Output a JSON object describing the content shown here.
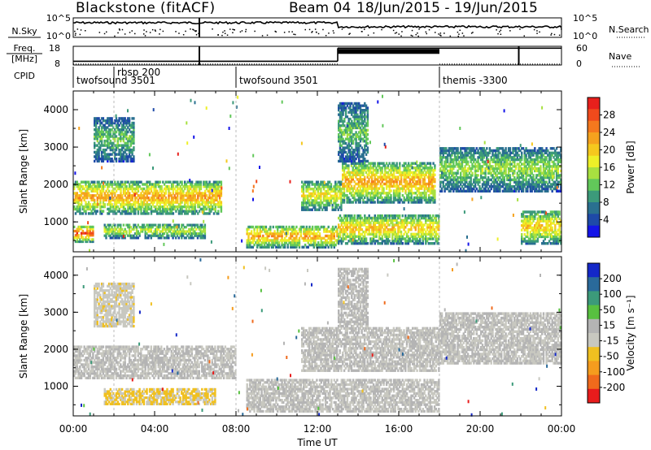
{
  "header": {
    "station": "Blackstone  (fitACF)",
    "beam": "Beam 04",
    "date_range": "18/Jun/2015 - 19/Jun/2015"
  },
  "top_panels": {
    "nsky_label": "N.Sky",
    "nsky_ticks": [
      "10^5",
      "10^0"
    ],
    "nsearch_label": "N.Search",
    "nsearch_ticks": [
      "10^5",
      "10^0"
    ],
    "freq_label": "Freq.",
    "freq_unit": "[MHz]",
    "freq_ticks": [
      "18",
      "8"
    ],
    "nave_label": "Nave",
    "nave_ticks": [
      "60",
      "0"
    ],
    "cpid_label": "CPID"
  },
  "cpid_segments": [
    {
      "label": "twofsound 3501",
      "start_hour": 0
    },
    {
      "label": "rbsp 200",
      "start_hour": 2
    },
    {
      "label": "twofsound 3501",
      "start_hour": 8
    },
    {
      "label": "themis -3300",
      "start_hour": 18
    }
  ],
  "colorbars": {
    "power": {
      "title": "Power [dB]",
      "labels": [
        "28",
        "24",
        "20",
        "16",
        "12",
        "8",
        "4"
      ],
      "colors": [
        "#e8201c",
        "#f04a1c",
        "#f5781e",
        "#f5a21e",
        "#f5c81e",
        "#eef028",
        "#a8e040",
        "#62c85a",
        "#3c9a7a",
        "#2a7090",
        "#1e4aa8",
        "#1414e8"
      ]
    },
    "velocity": {
      "title": "Velocity [m s⁻¹]",
      "labels": [
        "200",
        "100",
        "50",
        "15",
        "-15",
        "-50",
        "-100",
        "-200"
      ],
      "colors": [
        "#1428c8",
        "#2a6a9a",
        "#3c9a7a",
        "#58c040",
        "#b4b4b4",
        "#c8c8c0",
        "#f0c020",
        "#f59c1e",
        "#f06a1c",
        "#e81c1c"
      ]
    }
  },
  "chart_data": [
    {
      "type": "heatmap",
      "name_shown": "Power",
      "ylabel": "Slant Range [km]",
      "yticks": [
        "1000",
        "2000",
        "3000",
        "4000"
      ],
      "ylim": [
        200,
        4500
      ],
      "xlim_hours": [
        0,
        24
      ],
      "colorbar_label": "Power [dB]",
      "colorbar_range": [
        0,
        32
      ],
      "echo_bands": [
        {
          "t0": 0.0,
          "t1": 7.3,
          "r0": 1200,
          "r1": 2100,
          "level": 20
        },
        {
          "t0": 0.0,
          "t1": 1.0,
          "r0": 450,
          "r1": 900,
          "level": 24
        },
        {
          "t0": 1.5,
          "t1": 6.5,
          "r0": 550,
          "r1": 950,
          "level": 14
        },
        {
          "t0": 1.0,
          "t1": 3.0,
          "r0": 2600,
          "r1": 3800,
          "level": 10
        },
        {
          "t0": 8.5,
          "t1": 13.0,
          "r0": 300,
          "r1": 900,
          "level": 20
        },
        {
          "t0": 13.0,
          "t1": 18.0,
          "r0": 400,
          "r1": 1200,
          "level": 18
        },
        {
          "t0": 11.2,
          "t1": 13.2,
          "r0": 1300,
          "r1": 2100,
          "level": 16
        },
        {
          "t0": 13.2,
          "t1": 17.8,
          "r0": 1500,
          "r1": 2600,
          "level": 20
        },
        {
          "t0": 13.0,
          "t1": 14.5,
          "r0": 2600,
          "r1": 4200,
          "level": 10
        },
        {
          "t0": 18.0,
          "t1": 24.0,
          "r0": 1800,
          "r1": 3000,
          "level": 12
        },
        {
          "t0": 22.0,
          "t1": 24.0,
          "r0": 400,
          "r1": 1300,
          "level": 18
        }
      ]
    },
    {
      "type": "heatmap",
      "name_shown": "Velocity",
      "ylabel": "Slant Range [km]",
      "xlabel": "Time UT",
      "yticks": [
        "1000",
        "2000",
        "3000",
        "4000"
      ],
      "ylim": [
        200,
        4500
      ],
      "xlim_hours": [
        0,
        24
      ],
      "xticks": [
        "00:00",
        "04:00",
        "08:00",
        "12:00",
        "16:00",
        "20:00",
        "00:00"
      ],
      "colorbar_label": "Velocity [m s⁻¹]",
      "colorbar_range": [
        -250,
        250
      ],
      "echo_bands": [
        {
          "t0": 0.0,
          "t1": 8.0,
          "r0": 1200,
          "r1": 2100,
          "vel": 0
        },
        {
          "t0": 1.5,
          "t1": 7.0,
          "r0": 500,
          "r1": 950,
          "vel": -60
        },
        {
          "t0": 1.0,
          "t1": 3.0,
          "r0": 2600,
          "r1": 3800,
          "vel": -40
        },
        {
          "t0": 8.5,
          "t1": 18.0,
          "r0": 300,
          "r1": 1200,
          "vel": 0
        },
        {
          "t0": 11.2,
          "t1": 18.0,
          "r0": 1400,
          "r1": 2600,
          "vel": 0
        },
        {
          "t0": 13.0,
          "t1": 14.5,
          "r0": 2600,
          "r1": 4200,
          "vel": 5
        },
        {
          "t0": 18.0,
          "t1": 24.0,
          "r0": 1600,
          "r1": 3000,
          "vel": 0
        }
      ]
    }
  ],
  "freq_trace": [
    {
      "t0": 0,
      "t1": 13,
      "mhz": 10
    },
    {
      "t0": 13,
      "t1": 24,
      "mhz": 17
    }
  ],
  "nave_trace": [
    {
      "t0": 0,
      "t1": 13,
      "n": 3
    },
    {
      "t0": 13,
      "t1": 18,
      "n": 50
    },
    {
      "t0": 18,
      "t1": 24,
      "n": 3
    }
  ]
}
